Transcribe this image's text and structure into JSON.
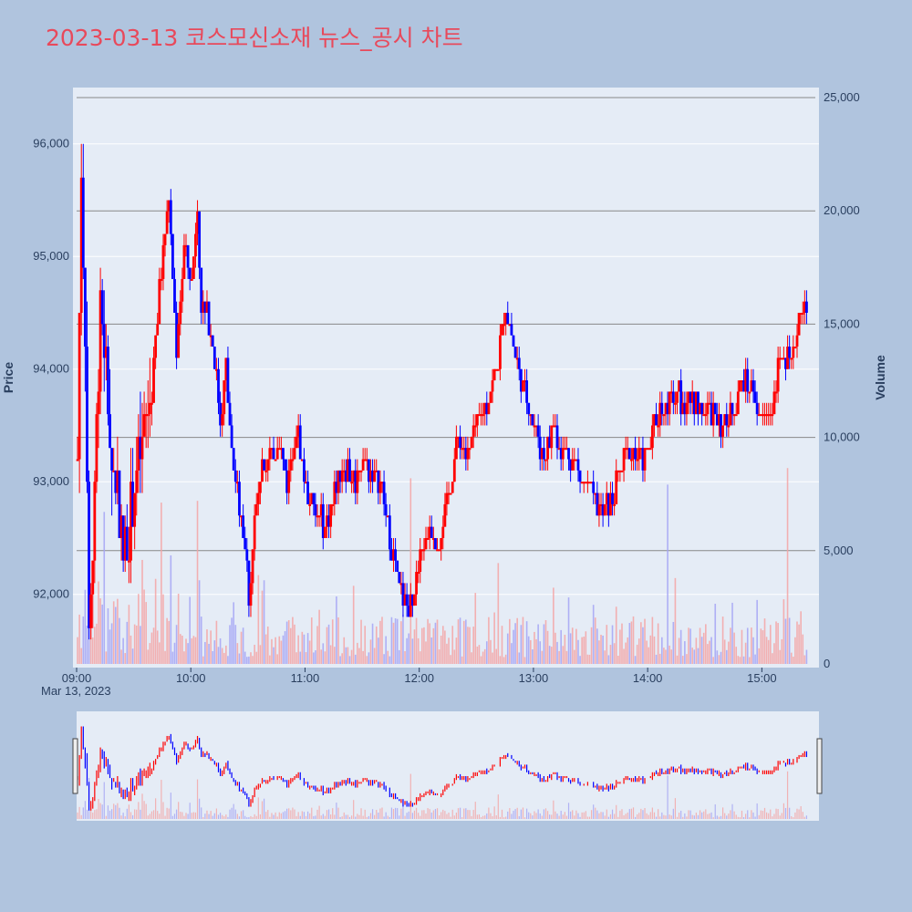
{
  "title": "2023-03-13 코스모신소재 뉴스_공시 차트",
  "colors": {
    "up": "#ff0000",
    "down": "#0000ff",
    "up_volume": "#f4a4a4",
    "down_volume": "#a4a4f4",
    "title": "#e8495b",
    "page_bg": "#b0c4de",
    "plot_bg": "#e5ecf6"
  },
  "chart_data": {
    "type": "candlestick",
    "date_label": "Mar 13, 2023",
    "x_range": [
      "09:00",
      "15:30"
    ],
    "x_ticks": [
      "09:00",
      "10:00",
      "11:00",
      "12:00",
      "13:00",
      "14:00",
      "15:00"
    ],
    "y_price": {
      "label": "Price",
      "range": [
        91350,
        96500
      ],
      "ticks": [
        92000,
        93000,
        94000,
        95000,
        96000
      ],
      "tick_labels": [
        "92,000",
        "93,000",
        "94,000",
        "95,000",
        "96,000"
      ]
    },
    "y_volume": {
      "label": "Volume",
      "range": [
        0,
        25000
      ],
      "ticks": [
        0,
        5000,
        10000,
        15000,
        20000,
        25000
      ],
      "tick_labels": [
        "0",
        "5,000",
        "10,000",
        "15,000",
        "20,000",
        "25,000"
      ]
    },
    "price_path": [
      [
        "09:00",
        93200
      ],
      [
        "09:02",
        95800
      ],
      [
        "09:04",
        94400
      ],
      [
        "09:06",
        91600
      ],
      [
        "09:08",
        92400
      ],
      [
        "09:12",
        94700
      ],
      [
        "09:15",
        94000
      ],
      [
        "09:18",
        93100
      ],
      [
        "09:21",
        93000
      ],
      [
        "09:24",
        92300
      ],
      [
        "09:30",
        93000
      ],
      [
        "09:35",
        93400
      ],
      [
        "09:40",
        94000
      ],
      [
        "09:44",
        94900
      ],
      [
        "09:48",
        95500
      ],
      [
        "09:52",
        94200
      ],
      [
        "09:56",
        95100
      ],
      [
        "10:00",
        94800
      ],
      [
        "10:03",
        95500
      ],
      [
        "10:05",
        94600
      ],
      [
        "10:10",
        94400
      ],
      [
        "10:15",
        93600
      ],
      [
        "10:18",
        94000
      ],
      [
        "10:22",
        93000
      ],
      [
        "10:26",
        92800
      ],
      [
        "10:30",
        92000
      ],
      [
        "10:33",
        92600
      ],
      [
        "10:37",
        93200
      ],
      [
        "10:42",
        93200
      ],
      [
        "10:46",
        93400
      ],
      [
        "10:50",
        93000
      ],
      [
        "10:55",
        93500
      ],
      [
        "11:00",
        92900
      ],
      [
        "11:05",
        92700
      ],
      [
        "11:10",
        92600
      ],
      [
        "11:15",
        92900
      ],
      [
        "11:20",
        93200
      ],
      [
        "11:25",
        93000
      ],
      [
        "11:30",
        93200
      ],
      [
        "11:35",
        93100
      ],
      [
        "11:40",
        92900
      ],
      [
        "11:45",
        92400
      ],
      [
        "11:50",
        92000
      ],
      [
        "11:55",
        91900
      ],
      [
        "12:00",
        92300
      ],
      [
        "12:05",
        92600
      ],
      [
        "12:10",
        92500
      ],
      [
        "12:15",
        92900
      ],
      [
        "12:20",
        93400
      ],
      [
        "12:25",
        93200
      ],
      [
        "12:30",
        93500
      ],
      [
        "12:35",
        93700
      ],
      [
        "12:40",
        94000
      ],
      [
        "12:45",
        94600
      ],
      [
        "12:50",
        94100
      ],
      [
        "12:55",
        93800
      ],
      [
        "13:00",
        93500
      ],
      [
        "13:05",
        93200
      ],
      [
        "13:10",
        93500
      ],
      [
        "13:15",
        93300
      ],
      [
        "13:20",
        93200
      ],
      [
        "13:25",
        93000
      ],
      [
        "13:30",
        92900
      ],
      [
        "13:35",
        92700
      ],
      [
        "13:40",
        92800
      ],
      [
        "13:45",
        93100
      ],
      [
        "13:50",
        93300
      ],
      [
        "13:55",
        93200
      ],
      [
        "14:00",
        93300
      ],
      [
        "14:05",
        93600
      ],
      [
        "14:10",
        93700
      ],
      [
        "14:15",
        93800
      ],
      [
        "14:20",
        93700
      ],
      [
        "14:25",
        93700
      ],
      [
        "14:30",
        93600
      ],
      [
        "14:35",
        93600
      ],
      [
        "14:40",
        93500
      ],
      [
        "14:45",
        93700
      ],
      [
        "14:50",
        93900
      ],
      [
        "14:55",
        93800
      ],
      [
        "15:00",
        93500
      ],
      [
        "15:05",
        93700
      ],
      [
        "15:10",
        94200
      ],
      [
        "15:15",
        94000
      ],
      [
        "15:20",
        94600
      ],
      [
        "15:23",
        94500
      ]
    ],
    "volume_range_note": "intraday per-minute volume, mostly 0-3,000 with spikes up to ~8,500"
  }
}
